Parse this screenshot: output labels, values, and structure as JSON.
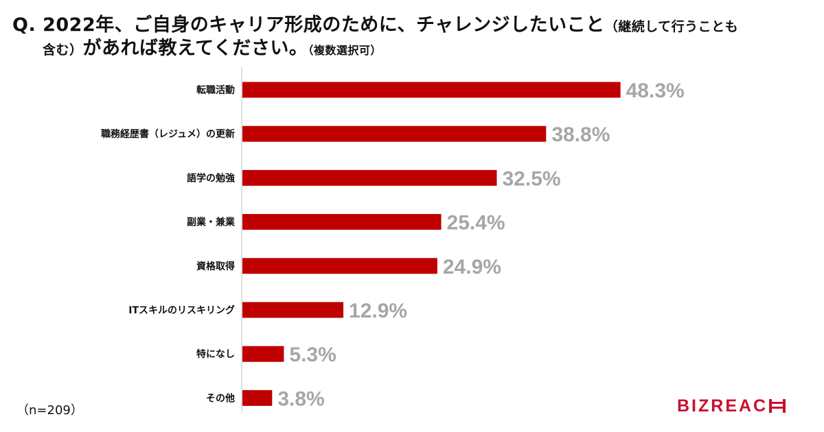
{
  "question": {
    "line1_main": "Q. 2022年、ご自身のキャリア形成のために、チャレンジしたいこと",
    "line1_note": "（継続して行うことも",
    "line2_note": "含む）",
    "line2_main": "があれば教えてください。",
    "line2_suffix": "（複数選択可）"
  },
  "sample": "（n=209）",
  "logo": {
    "text": "BIZREAC",
    "mark": "H"
  },
  "colors": {
    "bar": "#c00000",
    "value_label": "#a6a6a6",
    "axis": "#bfbfbf",
    "logo": "#c8102e"
  },
  "chart_data": {
    "type": "bar",
    "orientation": "horizontal",
    "categories": [
      "転職活動",
      "職務経歴書（レジュメ）の更新",
      "語学の勉強",
      "副業・兼業",
      "資格取得",
      "ITスキルのリスキリング",
      "特になし",
      "その他"
    ],
    "values": [
      48.3,
      38.8,
      32.5,
      25.4,
      24.9,
      12.9,
      5.3,
      3.8
    ],
    "value_labels": [
      "48.3%",
      "38.8%",
      "32.5%",
      "25.4%",
      "24.9%",
      "12.9%",
      "5.3%",
      "3.8%"
    ],
    "xlim": [
      0,
      100
    ],
    "grid": false
  }
}
